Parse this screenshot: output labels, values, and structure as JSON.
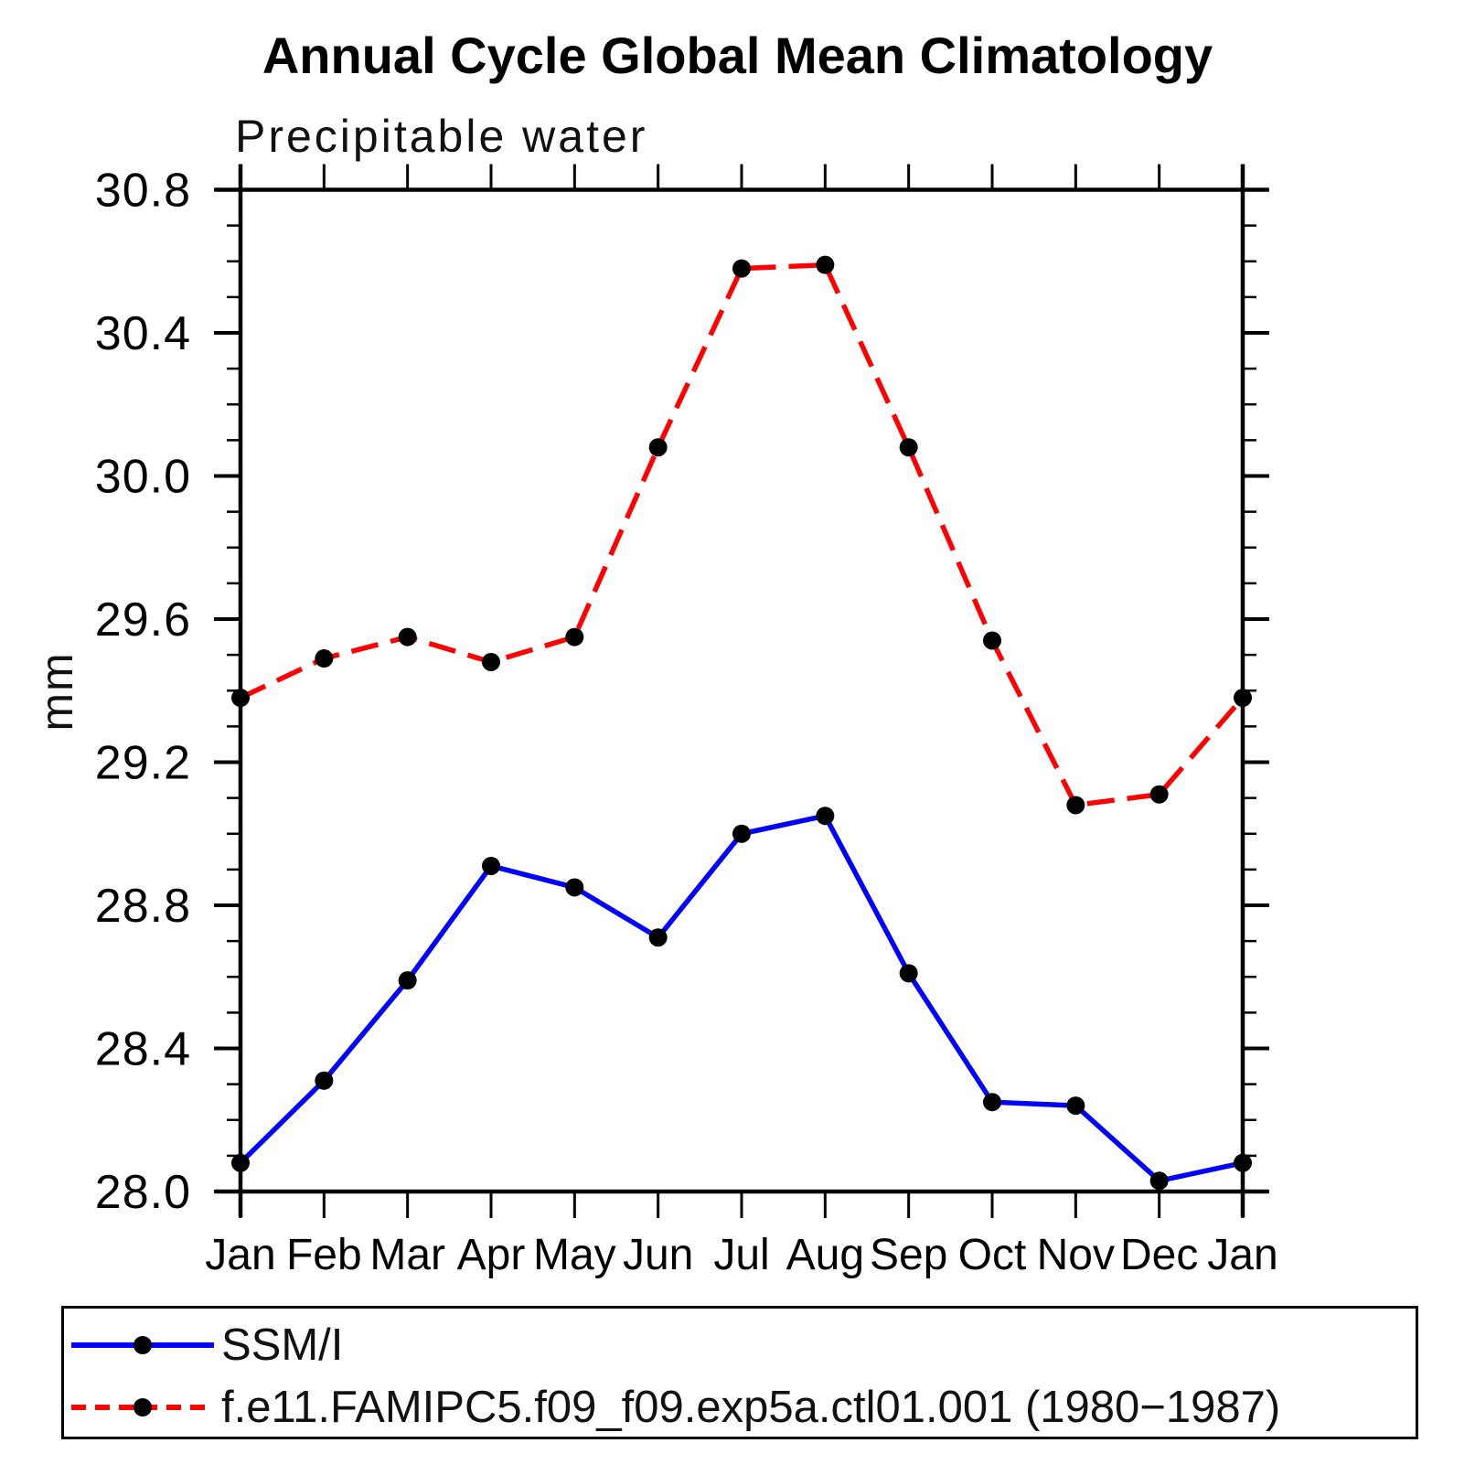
{
  "title": "Annual Cycle Global Mean Climatology",
  "chart_data": {
    "type": "line",
    "title": "Annual Cycle Global Mean Climatology",
    "subtitle": "Precipitable water",
    "ylabel": "mm",
    "xlabel": "",
    "categories": [
      "Jan",
      "Feb",
      "Mar",
      "Apr",
      "May",
      "Jun",
      "Jul",
      "Aug",
      "Sep",
      "Oct",
      "Nov",
      "Dec",
      "Jan"
    ],
    "ylim": [
      28.0,
      30.8
    ],
    "ytick_labels": [
      "28.0",
      "28.4",
      "28.8",
      "29.2",
      "29.6",
      "30.0",
      "30.4",
      "30.8"
    ],
    "ytick_major_step": 0.4,
    "ytick_minor_step": 0.1,
    "grid": "off",
    "legend_position": "bottom-box",
    "series": [
      {
        "name": "SSM/I",
        "style": "solid",
        "color": "#0000ff",
        "marker": "circle",
        "marker_color": "#000000",
        "values": [
          28.08,
          28.31,
          28.59,
          28.91,
          28.85,
          28.71,
          29.0,
          29.05,
          28.61,
          28.25,
          28.24,
          28.03,
          28.08
        ]
      },
      {
        "name": "f.e11.FAMIPC5.f09_f09.exp5a.ctl01.001 (1980−1987)",
        "style": "dashed",
        "color": "#ff0000",
        "marker": "circle",
        "marker_color": "#000000",
        "values": [
          29.38,
          29.49,
          29.55,
          29.48,
          29.55,
          30.08,
          30.58,
          30.59,
          30.08,
          29.54,
          29.08,
          29.11,
          29.38
        ]
      }
    ]
  }
}
